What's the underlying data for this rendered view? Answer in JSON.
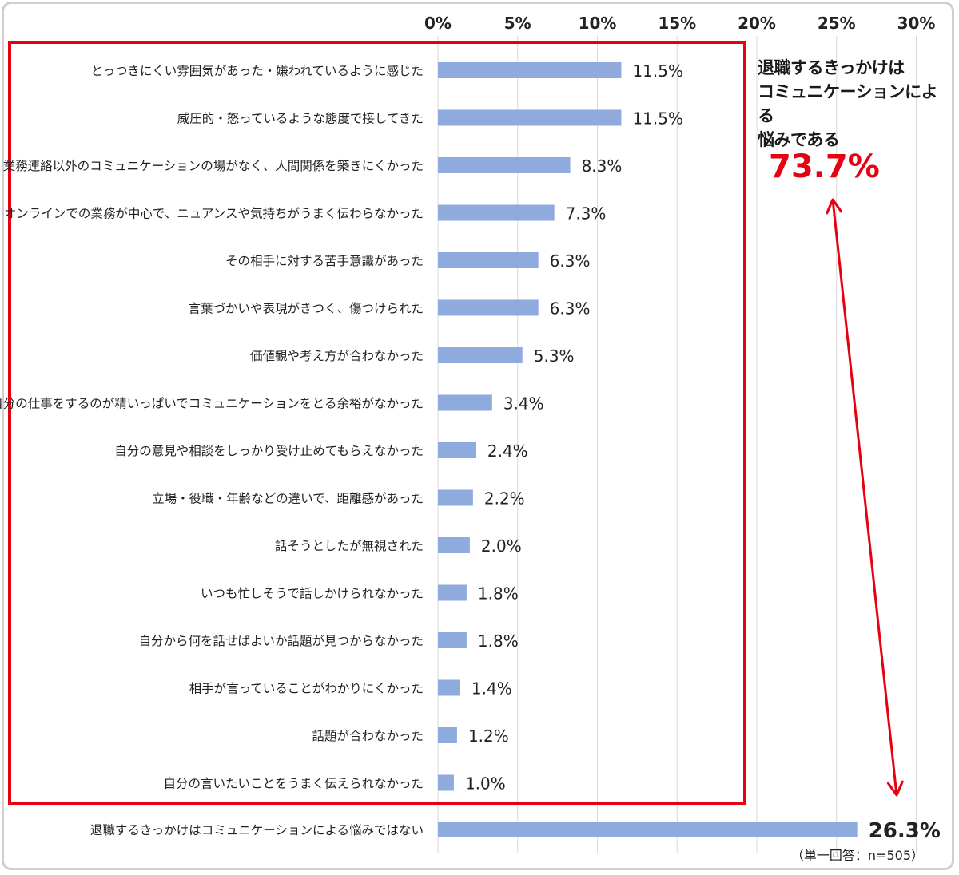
{
  "colors": {
    "bar": "#8faadc",
    "highlight": "#e60012",
    "grid": "#d9d9d9",
    "text": "#222222"
  },
  "callout": {
    "text": "退職するきっかけは\nコミュニケーションによる\n悩みである",
    "value": "73.7%"
  },
  "note": "（単一回答：n=505）",
  "chart_data": {
    "type": "bar",
    "orientation": "horizontal",
    "xlim": [
      0,
      30
    ],
    "ticks": [
      "0%",
      "5%",
      "10%",
      "15%",
      "20%",
      "25%",
      "30%"
    ],
    "tick_values": [
      0,
      5,
      10,
      15,
      20,
      25,
      30
    ],
    "grid": true,
    "categories": [
      "とっつきにくい雰囲気があった・嫌われているように感じた",
      "威圧的・怒っているような態度で接してきた",
      "業務連絡以外のコミュニケーションの場がなく、人間関係を築きにくかった",
      "オンラインでの業務が中心で、ニュアンスや気持ちがうまく伝わらなかった",
      "その相手に対する苦手意識があった",
      "言葉づかいや表現がきつく、傷つけられた",
      "価値観や考え方が合わなかった",
      "自分の仕事をするのが精いっぱいでコミュニケーションをとる余裕がなかった",
      "自分の意見や相談をしっかり受け止めてもらえなかった",
      "立場・役職・年齢などの違いで、距離感があった",
      "話そうとしたが無視された",
      "いつも忙しそうで話しかけられなかった",
      "自分から何を話せばよいか話題が見つからなかった",
      "相手が言っていることがわかりにくかった",
      "話題が合わなかった",
      "自分の言いたいことをうまく伝えられなかった",
      "退職するきっかけはコミュニケーションによる悩みではない"
    ],
    "values": [
      11.5,
      11.5,
      8.3,
      7.3,
      6.3,
      6.3,
      5.3,
      3.4,
      2.4,
      2.2,
      2.0,
      1.8,
      1.8,
      1.4,
      1.2,
      1.0,
      26.3
    ],
    "labels": [
      "11.5%",
      "11.5%",
      "8.3%",
      "7.3%",
      "6.3%",
      "6.3%",
      "5.3%",
      "3.4%",
      "2.4%",
      "2.2%",
      "2.0%",
      "1.8%",
      "1.8%",
      "1.4%",
      "1.2%",
      "1.0%",
      "26.3%"
    ]
  }
}
